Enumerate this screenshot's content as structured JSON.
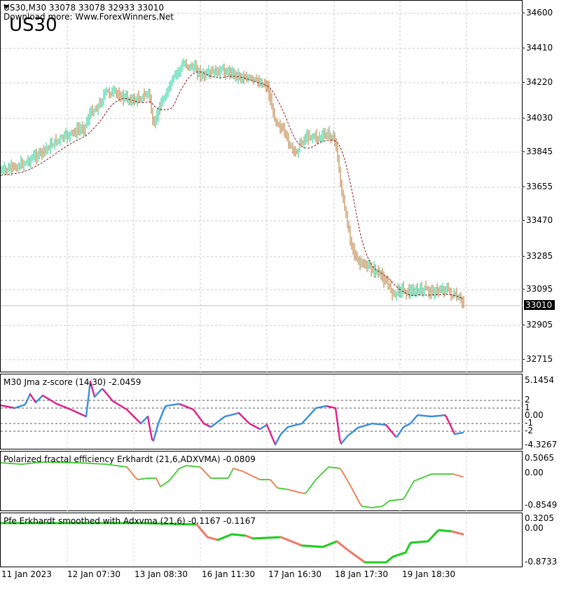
{
  "main": {
    "header": "US30,M30  33078 33078 32933 33010",
    "subheader": "Download more: Www.ForexWinners.Net",
    "symbol_watermark": "US30",
    "price_axis": [
      "34600",
      "34410",
      "34220",
      "34030",
      "33845",
      "33655",
      "33470",
      "33285",
      "33095",
      "32905",
      "32715"
    ],
    "current_price": "33010",
    "colors": {
      "bull": "#3fd6a5",
      "bear": "#c08a50",
      "ma": "#8b1a1a",
      "ma2": "#2e8b2e"
    }
  },
  "indicator1": {
    "title": "M30 Jma z-score (14,30) -2.0459",
    "axis": [
      "5.1454",
      "2",
      "1",
      "0.00",
      "-1",
      "-2",
      "-4.3267"
    ],
    "colors": {
      "up": "#3a8fe0",
      "down": "#e0208a"
    }
  },
  "indicator2": {
    "title": "Polarized fractal efficiency Erkhardt (21,6,ADXVMA) -0.0809",
    "axis": [
      "0.5065",
      "0.00",
      "-0.8549"
    ],
    "colors": {
      "up": "#44cc33",
      "down": "#f07a50"
    }
  },
  "indicator3": {
    "title": "Pfe Erkhardt smoothed with Adxvma (21,6) -0.1167 -0.1167",
    "axis": [
      "0.3205",
      "0.00",
      "-0.8733"
    ],
    "colors": {
      "up": "#22cc22",
      "down": "#f07a6a"
    }
  },
  "time_axis": [
    "11 Jan 2023",
    "12 Jan 07:30",
    "13 Jan 08:30",
    "16 Jan 11:30",
    "17 Jan 16:30",
    "18 Jan 17:30",
    "19 Jan 18:30"
  ]
}
